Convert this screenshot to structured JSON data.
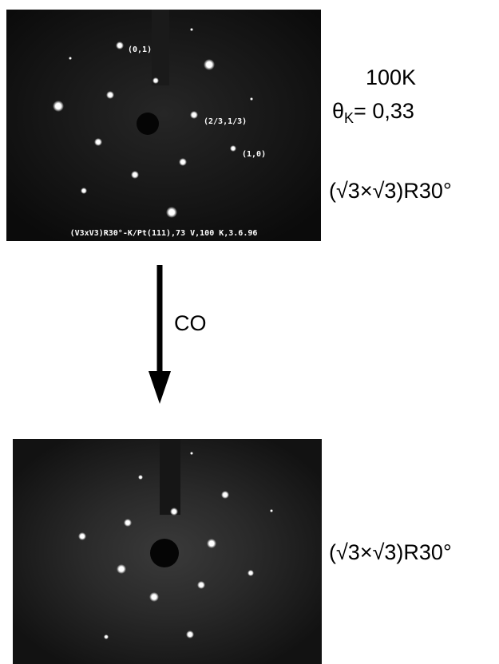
{
  "top_pattern": {
    "spot_labels": [
      "(0,1)",
      "(2/3,1/3)",
      "(1,0)"
    ],
    "caption": "(V3xV3)R30°-K/Pt(111),73 V,100 K,3.6.96"
  },
  "top_annotations": {
    "temperature": "100K",
    "coverage_symbol": "θ",
    "coverage_subscript": "K",
    "coverage_value": "= 0,33",
    "structure": "(√3×√3)R30°"
  },
  "arrow_label": "CO",
  "bottom_annotations": {
    "structure": "(√3×√3)R30°"
  }
}
